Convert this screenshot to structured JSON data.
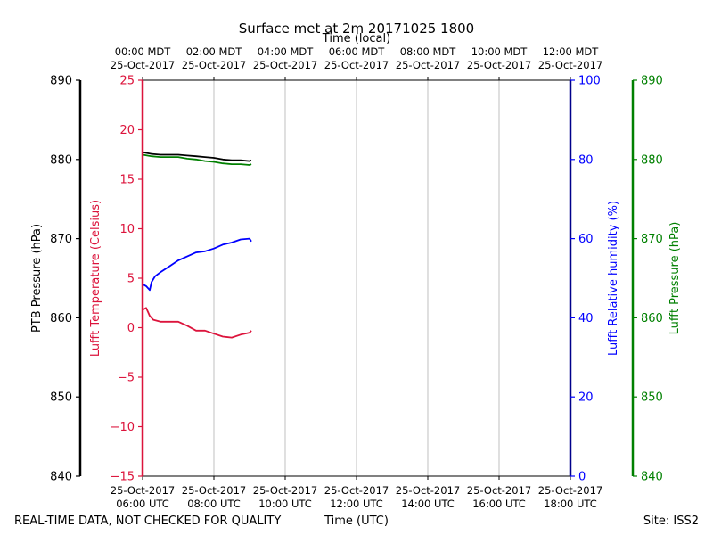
{
  "chart_data": {
    "type": "line",
    "title": "Surface met at 2m 20171025 1800",
    "top_xlabel": "Time (local)",
    "xlabel": "Time (UTC)",
    "footer_left": "REAL-TIME DATA, NOT CHECKED FOR QUALITY",
    "footer_right": "Site: ISS2",
    "x_range_hours_utc": [
      6,
      18
    ],
    "bottom_ticks": [
      {
        "h": 6,
        "line1": "25-Oct-2017",
        "line2": "06:00 UTC"
      },
      {
        "h": 8,
        "line1": "25-Oct-2017",
        "line2": "08:00 UTC"
      },
      {
        "h": 10,
        "line1": "25-Oct-2017",
        "line2": "10:00 UTC"
      },
      {
        "h": 12,
        "line1": "25-Oct-2017",
        "line2": "12:00 UTC"
      },
      {
        "h": 14,
        "line1": "25-Oct-2017",
        "line2": "14:00 UTC"
      },
      {
        "h": 16,
        "line1": "25-Oct-2017",
        "line2": "16:00 UTC"
      },
      {
        "h": 18,
        "line1": "25-Oct-2017",
        "line2": "18:00 UTC"
      }
    ],
    "top_ticks": [
      {
        "h": 6,
        "line1": "00:00 MDT",
        "line2": "25-Oct-2017"
      },
      {
        "h": 8,
        "line1": "02:00 MDT",
        "line2": "25-Oct-2017"
      },
      {
        "h": 10,
        "line1": "04:00 MDT",
        "line2": "25-Oct-2017"
      },
      {
        "h": 12,
        "line1": "06:00 MDT",
        "line2": "25-Oct-2017"
      },
      {
        "h": 14,
        "line1": "08:00 MDT",
        "line2": "25-Oct-2017"
      },
      {
        "h": 16,
        "line1": "10:00 MDT",
        "line2": "25-Oct-2017"
      },
      {
        "h": 18,
        "line1": "12:00 MDT",
        "line2": "25-Oct-2017"
      }
    ],
    "axes": {
      "ptb_pressure": {
        "label": "PTB Pressure (hPa)",
        "range": [
          840,
          890
        ],
        "ticks": [
          "890",
          "880",
          "870",
          "860",
          "850",
          "840"
        ],
        "color": "#000000"
      },
      "lufft_temperature": {
        "label": "Lufft Temperature (Celsius)",
        "range": [
          -15,
          25
        ],
        "ticks": [
          "25",
          "20",
          "15",
          "10",
          "5",
          "0",
          "−5",
          "−10",
          "−15"
        ],
        "color": "#dc143c"
      },
      "lufft_rh": {
        "label": "Lufft Relative humidity (%)",
        "range": [
          0,
          100
        ],
        "ticks": [
          "100",
          "80",
          "60",
          "40",
          "20",
          "0"
        ],
        "color": "#0000ff"
      },
      "lufft_pressure": {
        "label": "Lufft Pressure (hPa)",
        "range": [
          840,
          890
        ],
        "ticks": [
          "890",
          "880",
          "870",
          "860",
          "850",
          "840"
        ],
        "color": "#008000"
      }
    },
    "series": [
      {
        "name": "PTB Pressure",
        "axis": "ptb_pressure",
        "color": "#000000",
        "x": [
          6.0,
          6.25,
          6.5,
          6.75,
          7.0,
          7.25,
          7.5,
          7.75,
          8.0,
          8.25,
          8.5,
          8.75,
          9.0,
          9.05
        ],
        "y": [
          880.9,
          880.7,
          880.6,
          880.6,
          880.6,
          880.5,
          880.4,
          880.3,
          880.2,
          880.0,
          879.9,
          879.9,
          879.8,
          879.9
        ]
      },
      {
        "name": "Lufft Pressure",
        "axis": "lufft_pressure",
        "color": "#008000",
        "x": [
          6.0,
          6.25,
          6.5,
          6.75,
          7.0,
          7.25,
          7.5,
          7.75,
          8.0,
          8.25,
          8.5,
          8.75,
          9.0,
          9.05
        ],
        "y": [
          880.6,
          880.4,
          880.3,
          880.3,
          880.3,
          880.1,
          880.0,
          879.8,
          879.7,
          879.5,
          879.4,
          879.4,
          879.3,
          879.4
        ]
      },
      {
        "name": "Lufft Relative humidity",
        "axis": "lufft_rh",
        "color": "#0000ff",
        "x": [
          6.0,
          6.1,
          6.2,
          6.25,
          6.35,
          6.5,
          6.75,
          7.0,
          7.25,
          7.5,
          7.75,
          8.0,
          8.25,
          8.5,
          8.75,
          9.0,
          9.05
        ],
        "y": [
          48.5,
          48.0,
          47.0,
          49.0,
          50.5,
          51.5,
          53.0,
          54.5,
          55.5,
          56.5,
          56.8,
          57.5,
          58.5,
          59.0,
          59.8,
          60.0,
          59.3
        ]
      },
      {
        "name": "Lufft Temperature",
        "axis": "lufft_temperature",
        "color": "#dc143c",
        "x": [
          6.0,
          6.1,
          6.2,
          6.3,
          6.5,
          6.75,
          7.0,
          7.25,
          7.5,
          7.75,
          8.0,
          8.25,
          8.5,
          8.75,
          9.0,
          9.05
        ],
        "y": [
          1.8,
          2.0,
          1.2,
          0.8,
          0.6,
          0.6,
          0.6,
          0.2,
          -0.3,
          -0.3,
          -0.6,
          -0.9,
          -1.0,
          -0.7,
          -0.5,
          -0.3
        ]
      }
    ]
  }
}
